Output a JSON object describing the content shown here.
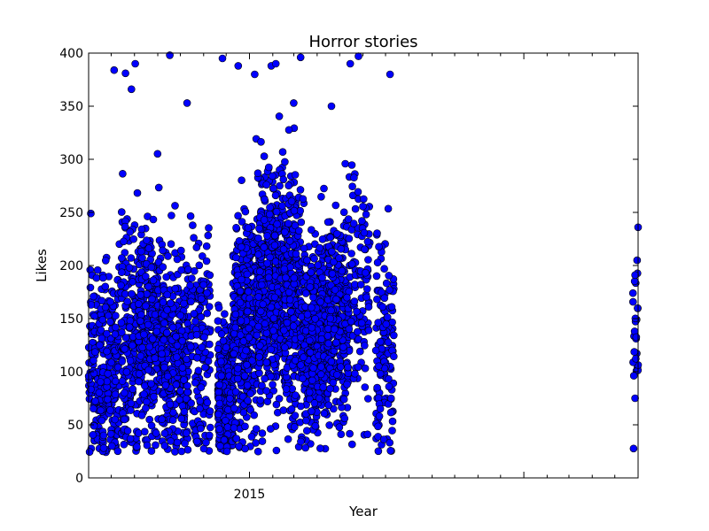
{
  "chart_data": {
    "type": "scatter",
    "title": "Horror stories",
    "xlabel": "Year",
    "ylabel": "Likes",
    "ylim": [
      0,
      400
    ],
    "yticks": [
      0,
      50,
      100,
      150,
      200,
      250,
      300,
      350,
      400
    ],
    "xlim": [
      "2014-06-01",
      "2016-06-01"
    ],
    "xtick_labels": [
      {
        "label": "2015",
        "x": "2015-01-01"
      }
    ],
    "grid": false,
    "marker_color": "#0000ff",
    "marker_edge": "#000000",
    "series": [
      {
        "clusters": [
          {
            "x_start": "2014-06-01",
            "x_end": "2014-07-12",
            "count": 300,
            "mean": 100,
            "spread": 45
          },
          {
            "x_start": "2014-07-14",
            "x_end": "2014-08-05",
            "count": 170,
            "mean": 125,
            "spread": 55
          },
          {
            "x_start": "2014-08-06",
            "x_end": "2014-09-05",
            "count": 300,
            "mean": 140,
            "spread": 50
          },
          {
            "x_start": "2014-09-06",
            "x_end": "2014-10-12",
            "count": 320,
            "mean": 115,
            "spread": 45
          },
          {
            "x_start": "2014-10-14",
            "x_end": "2014-11-10",
            "count": 150,
            "mean": 140,
            "spread": 60
          },
          {
            "x_start": "2014-11-20",
            "x_end": "2014-12-10",
            "count": 380,
            "mean": 75,
            "spread": 30
          },
          {
            "x_start": "2014-12-10",
            "x_end": "2015-01-10",
            "count": 350,
            "mean": 140,
            "spread": 55
          },
          {
            "x_start": "2015-01-10",
            "x_end": "2015-02-15",
            "count": 450,
            "mean": 180,
            "spread": 55
          },
          {
            "x_start": "2015-02-15",
            "x_end": "2015-03-10",
            "count": 300,
            "mean": 170,
            "spread": 55
          },
          {
            "x_start": "2015-03-10",
            "x_end": "2015-04-15",
            "count": 450,
            "mean": 135,
            "spread": 45
          },
          {
            "x_start": "2015-04-15",
            "x_end": "2015-05-15",
            "count": 300,
            "mean": 150,
            "spread": 50
          },
          {
            "x_start": "2015-05-16",
            "x_end": "2015-06-10",
            "count": 100,
            "mean": 190,
            "spread": 60
          },
          {
            "x_start": "2015-06-18",
            "x_end": "2015-07-12",
            "count": 130,
            "mean": 125,
            "spread": 50
          },
          {
            "x_start": "2016-05-25",
            "x_end": "2016-06-01",
            "count": 25,
            "mean": 135,
            "spread": 40
          }
        ],
        "points": [
          {
            "x": "2014-06-04",
            "y": 249
          },
          {
            "x": "2014-07-02",
            "y": 30
          },
          {
            "x": "2014-07-05",
            "y": 384
          },
          {
            "x": "2014-07-20",
            "y": 381
          },
          {
            "x": "2014-07-28",
            "y": 366
          },
          {
            "x": "2014-08-02",
            "y": 390
          },
          {
            "x": "2014-09-17",
            "y": 398
          },
          {
            "x": "2014-10-10",
            "y": 353
          },
          {
            "x": "2014-11-26",
            "y": 395
          },
          {
            "x": "2014-12-02",
            "y": 25
          },
          {
            "x": "2014-12-17",
            "y": 388
          },
          {
            "x": "2015-01-08",
            "y": 380
          },
          {
            "x": "2015-01-18",
            "y": 42
          },
          {
            "x": "2015-01-30",
            "y": 388
          },
          {
            "x": "2015-02-05",
            "y": 390
          },
          {
            "x": "2015-03-10",
            "y": 396
          },
          {
            "x": "2015-04-20",
            "y": 350
          },
          {
            "x": "2015-05-15",
            "y": 390
          },
          {
            "x": "2015-05-26",
            "y": 397
          },
          {
            "x": "2015-06-07",
            "y": 41
          },
          {
            "x": "2015-06-24",
            "y": 65
          },
          {
            "x": "2015-07-07",
            "y": 380
          },
          {
            "x": "2016-06-01",
            "y": 236
          },
          {
            "x": "2016-05-28",
            "y": 191
          },
          {
            "x": "2016-05-28",
            "y": 75
          }
        ]
      }
    ]
  }
}
